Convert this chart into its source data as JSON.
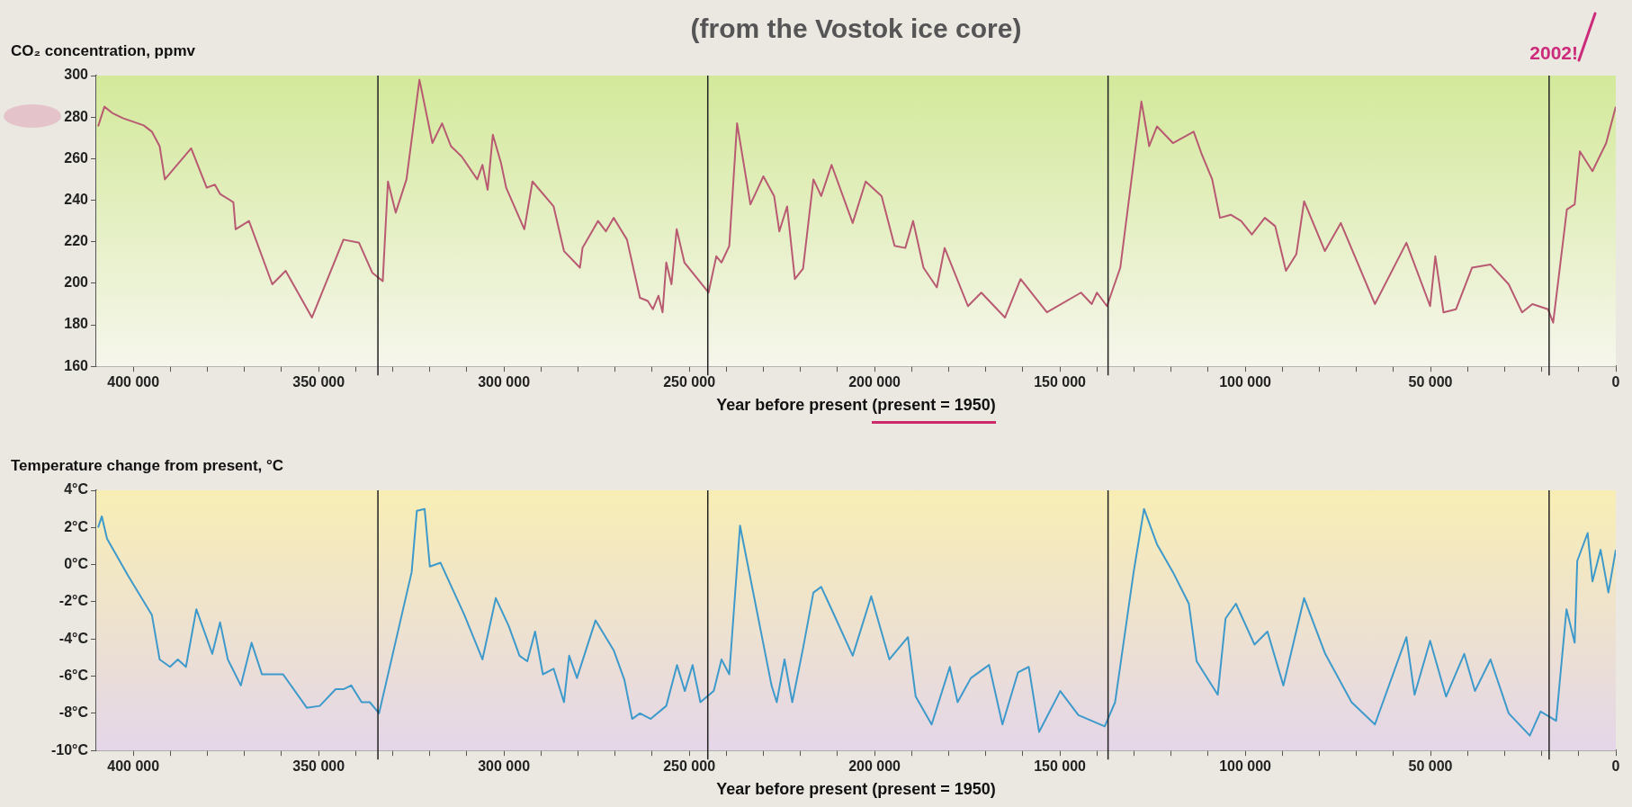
{
  "chart_data": [
    {
      "type": "line",
      "title": "(from the Vostok ice core)",
      "ylabel": "CO₂ concentration, ppmv",
      "xlabel": "Year before present (present = 1950)",
      "annotations": [
        "2002!"
      ],
      "color": "#b85a72",
      "x": [
        409500,
        407800,
        405700,
        402800,
        397200,
        395000,
        392900,
        391500,
        384400,
        380200,
        378000,
        376600,
        373000,
        372400,
        368800,
        362500,
        358900,
        351800,
        343300,
        339100,
        335500,
        332700,
        331300,
        329200,
        326300,
        322800,
        319300,
        316700,
        314300,
        311400,
        307200,
        305800,
        304400,
        303000,
        300800,
        299400,
        294500,
        292300,
        286600,
        283800,
        279500,
        278800,
        274600,
        272500,
        270400,
        266800,
        263300,
        261200,
        259800,
        258300,
        257200,
        256200,
        254800,
        253400,
        251300,
        244800,
        242700,
        241300,
        239200,
        237100,
        233500,
        231400,
        230000,
        227100,
        225700,
        223600,
        221500,
        219300,
        216500,
        214400,
        211600,
        205900,
        202400,
        198100,
        194600,
        191700,
        189600,
        186800,
        183200,
        181100,
        174800,
        171200,
        164800,
        160600,
        153500,
        144300,
        141400,
        140000,
        137300,
        133700,
        128000,
        125900,
        123800,
        119500,
        113900,
        111700,
        108900,
        106800,
        103900,
        101100,
        98200,
        94700,
        91900,
        89000,
        86200,
        84100,
        78500,
        74200,
        65000,
        56500,
        50100,
        48700,
        46500,
        43100,
        38800,
        33800,
        28900,
        25300,
        22500,
        18300,
        16900,
        13200,
        11100,
        9700,
        6300,
        2600,
        0
      ],
      "values": [
        275.5,
        285,
        282,
        279.5,
        276,
        273,
        266,
        250,
        265,
        246,
        247.5,
        243,
        239,
        226,
        230,
        199.5,
        206,
        183.5,
        221,
        219.5,
        205,
        201,
        249,
        234,
        250,
        298,
        267.5,
        277,
        266,
        261,
        250,
        257,
        245,
        271.5,
        258,
        246,
        226,
        249,
        237,
        215.5,
        207.5,
        217,
        230,
        225,
        231.5,
        221,
        193,
        191.5,
        187.5,
        194,
        186,
        210,
        199.5,
        226,
        210,
        195.5,
        213,
        210,
        218,
        277,
        238,
        246,
        251.5,
        242,
        225,
        237,
        202,
        207,
        250,
        242,
        257,
        229,
        249,
        242,
        218,
        217,
        230,
        207.5,
        198,
        217,
        189,
        195.5,
        183.5,
        202,
        186,
        195.5,
        190,
        195.5,
        189,
        207.5,
        287.5,
        266,
        275.5,
        267.5,
        273,
        262,
        250,
        231.5,
        233,
        230,
        223.5,
        231.5,
        227.5,
        206,
        214,
        239.5,
        215.5,
        229,
        190,
        219.5,
        189,
        213,
        186,
        187.5,
        207.5,
        209,
        199.5,
        186,
        190,
        187.5,
        181,
        235.5,
        238,
        263.5,
        254,
        267.5,
        285
      ],
      "xlim": [
        410000,
        0
      ],
      "xticks": [
        {
          "value": 400000,
          "label": "400 000"
        },
        {
          "value": 390000,
          "label": null
        },
        {
          "value": 380000,
          "label": null
        },
        {
          "value": 370000,
          "label": null
        },
        {
          "value": 360000,
          "label": null
        },
        {
          "value": 350000,
          "label": "350 000"
        },
        {
          "value": 340000,
          "label": null
        },
        {
          "value": 330000,
          "label": null
        },
        {
          "value": 320000,
          "label": null
        },
        {
          "value": 310000,
          "label": null
        },
        {
          "value": 300000,
          "label": "300 000"
        },
        {
          "value": 290000,
          "label": null
        },
        {
          "value": 280000,
          "label": null
        },
        {
          "value": 270000,
          "label": null
        },
        {
          "value": 260000,
          "label": null
        },
        {
          "value": 250000,
          "label": "250 000"
        },
        {
          "value": 240000,
          "label": null
        },
        {
          "value": 230000,
          "label": null
        },
        {
          "value": 220000,
          "label": null
        },
        {
          "value": 210000,
          "label": null
        },
        {
          "value": 200000,
          "label": "200 000"
        },
        {
          "value": 190000,
          "label": null
        },
        {
          "value": 180000,
          "label": null
        },
        {
          "value": 170000,
          "label": null
        },
        {
          "value": 160000,
          "label": null
        },
        {
          "value": 150000,
          "label": "150 000"
        },
        {
          "value": 140000,
          "label": null
        },
        {
          "value": 130000,
          "label": null
        },
        {
          "value": 120000,
          "label": null
        },
        {
          "value": 110000,
          "label": null
        },
        {
          "value": 100000,
          "label": "100 000"
        },
        {
          "value": 90000,
          "label": null
        },
        {
          "value": 80000,
          "label": null
        },
        {
          "value": 70000,
          "label": null
        },
        {
          "value": 60000,
          "label": null
        },
        {
          "value": 50000,
          "label": "50 000"
        },
        {
          "value": 40000,
          "label": null
        },
        {
          "value": 30000,
          "label": null
        },
        {
          "value": 20000,
          "label": null
        },
        {
          "value": 10000,
          "label": null
        },
        0
      ],
      "ylim": [
        160,
        300
      ],
      "yticks": [
        160,
        180,
        200,
        220,
        240,
        260,
        280,
        300
      ],
      "ref_lines": [
        {
          "axis": "x",
          "value": 334000,
          "color": "#222222"
        },
        {
          "axis": "x",
          "value": 245000,
          "color": "#222222"
        },
        {
          "axis": "x",
          "value": 137000,
          "color": "#222222"
        },
        {
          "axis": "x",
          "value": 18000,
          "color": "#222222"
        }
      ]
    },
    {
      "type": "line",
      "ylabel": "Temperature change from present, °C",
      "xlabel": "Year before present (present = 1950)",
      "color": "#3e9acb",
      "x": [
        409500,
        408500,
        407100,
        401400,
        395000,
        392900,
        390100,
        388000,
        385800,
        383000,
        378700,
        376600,
        374500,
        371000,
        368100,
        365300,
        359600,
        353200,
        349700,
        345400,
        343300,
        341200,
        338400,
        336200,
        333700,
        324900,
        323500,
        321400,
        320000,
        317100,
        310700,
        305800,
        302200,
        298700,
        295800,
        293700,
        291600,
        289500,
        286600,
        283800,
        282400,
        280300,
        275300,
        270400,
        267500,
        265400,
        263300,
        260400,
        256200,
        253300,
        251200,
        249100,
        247000,
        243400,
        241300,
        239200,
        236300,
        227800,
        226400,
        224300,
        222200,
        219300,
        216500,
        214400,
        211600,
        205900,
        200900,
        196000,
        191000,
        188900,
        184600,
        179700,
        177600,
        174000,
        169100,
        165500,
        161300,
        158400,
        155600,
        149900,
        145000,
        137900,
        135100,
        130100,
        127300,
        123800,
        119500,
        115200,
        113100,
        107400,
        105300,
        102500,
        97500,
        94000,
        89700,
        84100,
        78400,
        71300,
        65000,
        56500,
        54300,
        50100,
        45800,
        40900,
        38000,
        33800,
        28900,
        23200,
        20300,
        16100,
        13300,
        11100,
        10400,
        7600,
        6300,
        4100,
        2000,
        0
      ],
      "values": [
        2.0,
        2.6,
        1.4,
        -0.6,
        -2.7,
        -5.1,
        -5.5,
        -5.1,
        -5.5,
        -2.4,
        -4.8,
        -3.1,
        -5.1,
        -6.5,
        -4.2,
        -5.9,
        -5.9,
        -7.7,
        -7.6,
        -6.7,
        -6.7,
        -6.5,
        -7.4,
        -7.4,
        -8.0,
        -0.4,
        2.9,
        3.0,
        -0.1,
        0.1,
        -2.7,
        -5.1,
        -1.8,
        -3.3,
        -4.9,
        -5.2,
        -3.6,
        -5.9,
        -5.6,
        -7.4,
        -4.9,
        -6.1,
        -3.0,
        -4.6,
        -6.2,
        -8.3,
        -8.0,
        -8.3,
        -7.6,
        -5.4,
        -6.8,
        -5.4,
        -7.4,
        -6.8,
        -5.1,
        -5.9,
        2.1,
        -6.5,
        -7.4,
        -5.1,
        -7.4,
        -4.5,
        -1.5,
        -1.2,
        -2.4,
        -4.9,
        -1.7,
        -5.1,
        -3.9,
        -7.1,
        -8.6,
        -5.5,
        -7.4,
        -6.1,
        -5.4,
        -8.6,
        -5.8,
        -5.5,
        -9.0,
        -6.8,
        -8.1,
        -8.7,
        -7.4,
        -0.4,
        3.0,
        1.1,
        -0.4,
        -2.1,
        -5.2,
        -7.0,
        -2.9,
        -2.1,
        -4.3,
        -3.6,
        -6.5,
        -1.8,
        -4.8,
        -7.4,
        -8.6,
        -3.9,
        -7.0,
        -4.1,
        -7.1,
        -4.8,
        -6.8,
        -5.1,
        -8.0,
        -9.2,
        -7.9,
        -8.4,
        -2.4,
        -4.2,
        0.2,
        1.7,
        -0.9,
        0.8,
        -1.5,
        0.8
      ],
      "xlim": [
        410000,
        0
      ],
      "xticks": [
        {
          "value": 400000,
          "label": "400 000"
        },
        {
          "value": 390000,
          "label": null
        },
        {
          "value": 380000,
          "label": null
        },
        {
          "value": 370000,
          "label": null
        },
        {
          "value": 360000,
          "label": null
        },
        {
          "value": 350000,
          "label": "350 000"
        },
        {
          "value": 340000,
          "label": null
        },
        {
          "value": 330000,
          "label": null
        },
        {
          "value": 320000,
          "label": null
        },
        {
          "value": 310000,
          "label": null
        },
        {
          "value": 300000,
          "label": "300 000"
        },
        {
          "value": 290000,
          "label": null
        },
        {
          "value": 280000,
          "label": null
        },
        {
          "value": 270000,
          "label": null
        },
        {
          "value": 260000,
          "label": null
        },
        {
          "value": 250000,
          "label": "250 000"
        },
        {
          "value": 240000,
          "label": null
        },
        {
          "value": 230000,
          "label": null
        },
        {
          "value": 220000,
          "label": null
        },
        {
          "value": 210000,
          "label": null
        },
        {
          "value": 200000,
          "label": "200 000"
        },
        {
          "value": 190000,
          "label": null
        },
        {
          "value": 180000,
          "label": null
        },
        {
          "value": 170000,
          "label": null
        },
        {
          "value": 160000,
          "label": null
        },
        {
          "value": 150000,
          "label": "150 000"
        },
        {
          "value": 140000,
          "label": null
        },
        {
          "value": 130000,
          "label": null
        },
        {
          "value": 120000,
          "label": null
        },
        {
          "value": 110000,
          "label": null
        },
        {
          "value": 100000,
          "label": "100 000"
        },
        {
          "value": 90000,
          "label": null
        },
        {
          "value": 80000,
          "label": null
        },
        {
          "value": 70000,
          "label": null
        },
        {
          "value": 60000,
          "label": null
        },
        {
          "value": 50000,
          "label": "50 000"
        },
        {
          "value": 40000,
          "label": null
        },
        {
          "value": 30000,
          "label": null
        },
        {
          "value": 20000,
          "label": null
        },
        {
          "value": 10000,
          "label": null
        },
        0
      ],
      "ylim": [
        -10,
        4
      ],
      "yticks": [
        {
          "value": -10,
          "label": "-10°C"
        },
        {
          "value": -8,
          "label": "-8°C"
        },
        {
          "value": -6,
          "label": "-6°C"
        },
        {
          "value": -4,
          "label": "-4°C"
        },
        {
          "value": -2,
          "label": "-2°C"
        },
        {
          "value": 0,
          "label": "0°C"
        },
        {
          "value": 2,
          "label": "2°C"
        },
        {
          "value": 4,
          "label": "4°C"
        }
      ],
      "ref_lines": [
        {
          "axis": "x",
          "value": 334000,
          "color": "#222222"
        },
        {
          "axis": "x",
          "value": 245000,
          "color": "#222222"
        },
        {
          "axis": "x",
          "value": 137000,
          "color": "#222222"
        },
        {
          "axis": "x",
          "value": 18000,
          "color": "#222222"
        }
      ]
    }
  ]
}
